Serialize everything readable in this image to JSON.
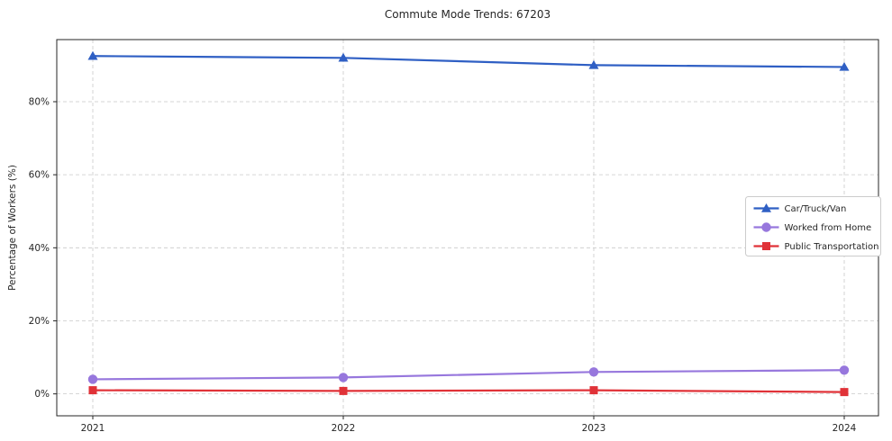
{
  "background": "#ffffff",
  "chart_data": {
    "type": "line",
    "title": "Commute Mode Trends: 67203",
    "xlabel": "",
    "ylabel": "Percentage of Workers (%)",
    "x": [
      2021,
      2022,
      2023,
      2024
    ],
    "x_tick_labels": [
      "2021",
      "2022",
      "2023",
      "2024"
    ],
    "series": [
      {
        "name": "Car/Truck/Van",
        "values": [
          92.5,
          92.0,
          90.0,
          89.5
        ],
        "color": "#2f5fc4",
        "marker": "triangle"
      },
      {
        "name": "Worked from Home",
        "values": [
          4.0,
          4.5,
          6.0,
          6.5
        ],
        "color": "#9777dd",
        "marker": "circle"
      },
      {
        "name": "Public Transportation",
        "values": [
          1.0,
          0.8,
          1.0,
          0.5
        ],
        "color": "#e03238",
        "marker": "square"
      }
    ],
    "ylim": [
      -6,
      97
    ],
    "yticks": [
      0,
      20,
      40,
      60,
      80
    ],
    "ytick_labels": [
      "0%",
      "20%",
      "40%",
      "60%",
      "80%"
    ],
    "grid": true,
    "grid_style": "dashed",
    "legend_position": "center-right",
    "axis_color": "#262626",
    "grid_color": "#c9c9c9"
  }
}
